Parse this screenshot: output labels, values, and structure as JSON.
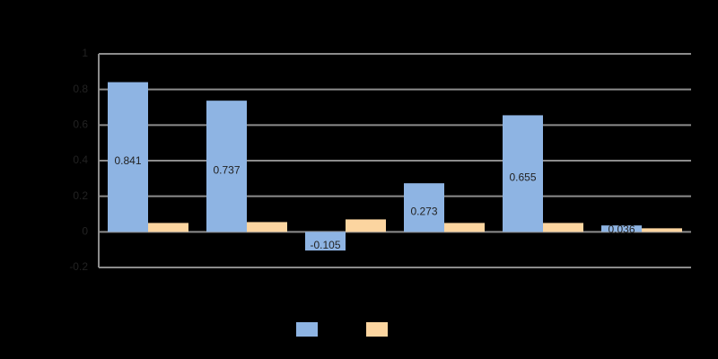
{
  "chart_data": {
    "type": "bar",
    "categories": [
      null,
      null,
      null,
      null,
      null,
      null
    ],
    "series": [
      {
        "color": "#8eb4e3",
        "values": [
          0.841,
          0.737,
          -0.105,
          0.273,
          0.655,
          0.036
        ]
      },
      {
        "color": "#fcd5a0",
        "values": [
          0.05,
          0.055,
          0.07,
          0.05,
          0.05,
          0.02
        ]
      }
    ],
    "ylim": [
      -0.2,
      1
    ],
    "yticks": [
      -0.2,
      0,
      0.2,
      0.4,
      0.6,
      0.8,
      1
    ],
    "grid": true,
    "data_labels_series": 0
  }
}
